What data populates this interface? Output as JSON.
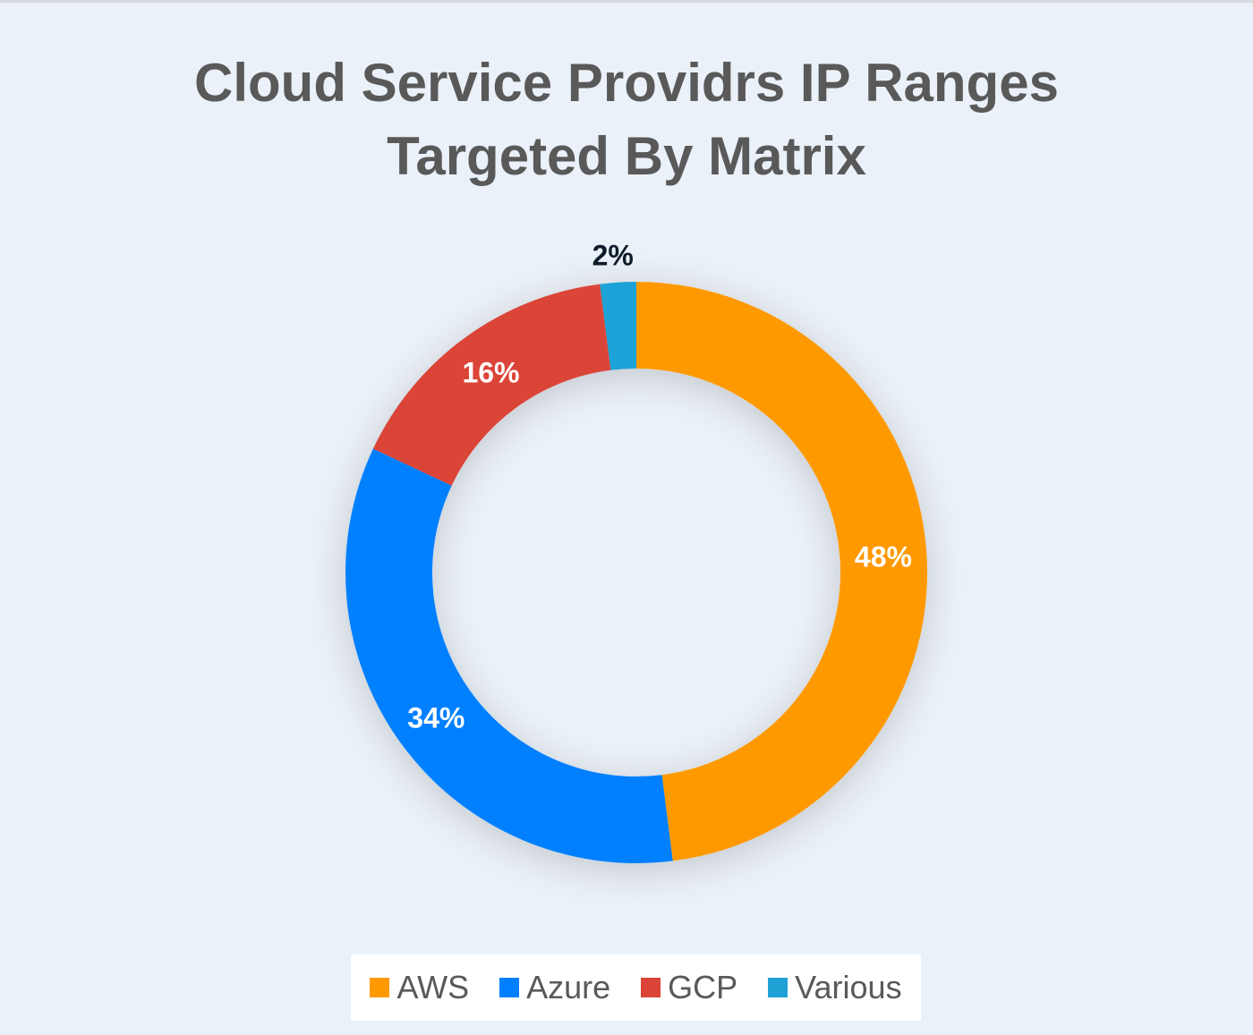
{
  "chart_data": {
    "type": "pie",
    "title_lines": [
      "Cloud Service Providrs IP Ranges",
      "Targeted By Matrix"
    ],
    "donut": true,
    "categories": [
      "AWS",
      "Azure",
      "GCP",
      "Various"
    ],
    "values": [
      48,
      34,
      16,
      2
    ],
    "labels": [
      "48%",
      "34%",
      "16%",
      "2%"
    ],
    "colors": [
      "#ff9900",
      "#0080ff",
      "#db4437",
      "#1ea2d6"
    ],
    "label_colors": [
      "#ffffff",
      "#ffffff",
      "#ffffff",
      "#0d1b2a"
    ],
    "legend_position": "bottom"
  }
}
